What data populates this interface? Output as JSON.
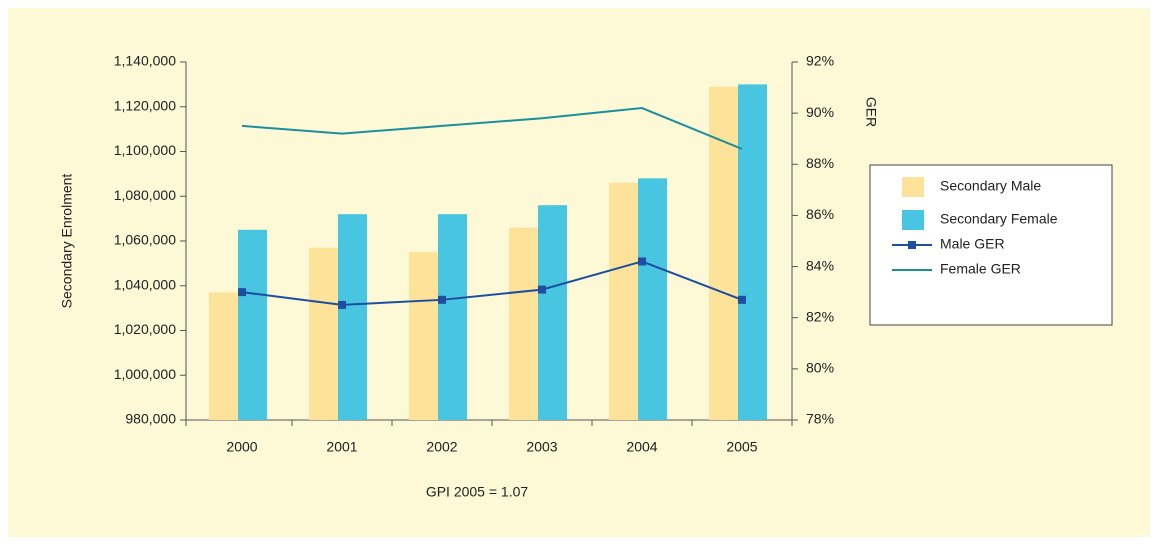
{
  "chart_data": {
    "type": "bar-line",
    "x_label": "GPI 2005 = 1.07",
    "y_label": "Secondary Enrolment",
    "y2_label": "GER",
    "categories": [
      "2000",
      "2001",
      "2002",
      "2003",
      "2004",
      "2005"
    ],
    "series": [
      {
        "name": "Secondary Male",
        "color": "#fde29a",
        "kind": "bar",
        "values": [
          1037000,
          1057000,
          1055000,
          1066000,
          1086000,
          1129000
        ]
      },
      {
        "name": "Secondary Female",
        "color": "#48c5e0",
        "kind": "bar",
        "values": [
          1065000,
          1072000,
          1072000,
          1076000,
          1088000,
          1130000
        ]
      },
      {
        "name": "Male GER",
        "color": "#1c4fa0",
        "kind": "line",
        "marker": "square",
        "axis": "y2",
        "values": [
          83.0,
          82.5,
          82.7,
          83.1,
          84.2,
          82.7
        ]
      },
      {
        "name": "Female GER",
        "color": "#1b8f9a",
        "kind": "line",
        "axis": "y2",
        "values": [
          89.5,
          89.2,
          89.5,
          89.8,
          90.2,
          88.6
        ]
      }
    ],
    "ylim": [
      980000,
      1140000
    ],
    "yticks": [
      {
        "value": 980000,
        "label": "980,000"
      },
      {
        "value": 1000000,
        "label": "1,000,000"
      },
      {
        "value": 1020000,
        "label": "1,020,000"
      },
      {
        "value": 1040000,
        "label": "1,040,000"
      },
      {
        "value": 1060000,
        "label": "1,060,000"
      },
      {
        "value": 1080000,
        "label": "1,080,000"
      },
      {
        "value": 1100000,
        "label": "1,100,000"
      },
      {
        "value": 1120000,
        "label": "1,120,000"
      },
      {
        "value": 1140000,
        "label": "1,140,000"
      }
    ],
    "y2lim": [
      78,
      92
    ],
    "y2ticks": [
      {
        "value": 78,
        "label": "78%"
      },
      {
        "value": 80,
        "label": "80%"
      },
      {
        "value": 82,
        "label": "82%"
      },
      {
        "value": 84,
        "label": "84%"
      },
      {
        "value": 86,
        "label": "86%"
      },
      {
        "value": 88,
        "label": "88%"
      },
      {
        "value": 90,
        "label": "90%"
      },
      {
        "value": 92,
        "label": "92%"
      }
    ],
    "legend": "right"
  }
}
